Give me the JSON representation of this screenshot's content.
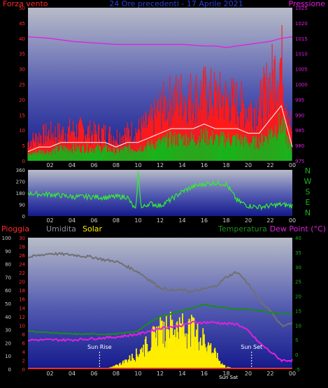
{
  "colors": {
    "background": "#000000",
    "plot_top": "#b8bcc8",
    "plot_bottom": "#141a8c",
    "tick_text": "#d0d0d0",
    "title": "#2b3fd6",
    "wind_gust": "#ff1a1a",
    "wind_avg": "#1bb21b",
    "pressure": "#e020e0",
    "direction": "#33ee33",
    "rain": "#ff2a2a",
    "humidity": "#707070",
    "solar": "#ffee00",
    "temperature": "#1a8c1a",
    "dew_point": "#e020e0",
    "temp_axis": "#1bb21b",
    "nswe_letters": "#1bb21b"
  },
  "top_panel": {
    "title": "24 Ore precedenti - 17 Aprile 2021",
    "left_label": "Forza vento",
    "right_label": "Pressione"
  },
  "middle_panel": {
    "compass_letters": [
      "N",
      "W",
      "S",
      "E",
      "N"
    ]
  },
  "bottom_panel": {
    "label_rain": "Pioggia",
    "label_humidity": "Umidita",
    "label_solar": "Solar",
    "label_temperature": "Temperatura",
    "label_dewpoint": "Dew Point (°C)",
    "sun_rise": "Sun Rise",
    "sun_set": "Sun Set",
    "sun_sat": "Sun Sat"
  },
  "chart_data": [
    {
      "type": "line",
      "panel": "wind_pressure",
      "x_ticks": [
        "02",
        "04",
        "06",
        "08",
        "10",
        "12",
        "14",
        "16",
        "18",
        "20",
        "22",
        "00"
      ],
      "y_left_ticks": [
        "0",
        "5",
        "10",
        "15",
        "20",
        "25",
        "30",
        "35",
        "40",
        "45",
        "50"
      ],
      "ylim_left": [
        0,
        50
      ],
      "y_right_ticks": [
        "975",
        "980",
        "985",
        "990",
        "995",
        "1000",
        "1005",
        "1010",
        "1015",
        "1020",
        "1025"
      ],
      "ylim_right": [
        975,
        1025
      ],
      "series": [
        {
          "axis": "left",
          "color_key": "wind_gust",
          "hours": [
            0,
            1,
            2,
            3,
            4,
            5,
            6,
            7,
            8,
            9,
            10,
            11,
            12,
            13,
            14,
            15,
            16,
            17,
            18,
            19,
            20,
            21,
            22,
            23,
            24
          ],
          "values": [
            6,
            8,
            9,
            9,
            10,
            10,
            9,
            9,
            8,
            9,
            10,
            12,
            17,
            20,
            21,
            21,
            22,
            21,
            20,
            19,
            17,
            18,
            26,
            33,
            8
          ]
        },
        {
          "axis": "left",
          "color_key": "wind_avg",
          "hours": [
            0,
            1,
            2,
            3,
            4,
            5,
            6,
            7,
            8,
            9,
            10,
            11,
            12,
            13,
            14,
            15,
            16,
            17,
            18,
            19,
            20,
            21,
            22,
            23,
            24
          ],
          "values": [
            2,
            3,
            3,
            4,
            4,
            4,
            4,
            4,
            3,
            4,
            4,
            5,
            6,
            7,
            7,
            7,
            8,
            7,
            7,
            7,
            6,
            6,
            9,
            12,
            3
          ]
        },
        {
          "axis": "right",
          "color_key": "pressure",
          "hours": [
            0,
            2,
            4,
            6,
            8,
            10,
            12,
            14,
            16,
            17,
            18,
            20,
            22,
            23,
            24
          ],
          "values": [
            1015.5,
            1015,
            1014,
            1013.5,
            1013,
            1013,
            1013,
            1013,
            1012.5,
            1012.5,
            1012,
            1013,
            1014,
            1015,
            1015.5
          ]
        }
      ]
    },
    {
      "type": "line",
      "panel": "wind_direction",
      "x_ticks": [
        "02",
        "04",
        "06",
        "08",
        "10",
        "12",
        "14",
        "16",
        "18",
        "20",
        "22",
        "00"
      ],
      "y_ticks": [
        "0",
        "90",
        "180",
        "270",
        "360"
      ],
      "ylim": [
        0,
        360
      ],
      "series": [
        {
          "color_key": "direction",
          "hours": [
            0,
            1,
            2,
            3,
            4,
            5,
            6,
            7,
            8,
            9,
            9.8,
            10,
            10.3,
            11,
            12,
            13,
            14,
            15,
            16,
            17,
            18,
            19,
            20,
            21,
            22,
            23,
            24
          ],
          "values": [
            180,
            170,
            170,
            160,
            150,
            150,
            150,
            145,
            150,
            150,
            40,
            340,
            60,
            100,
            80,
            130,
            190,
            230,
            250,
            260,
            250,
            120,
            80,
            70,
            80,
            90,
            80
          ]
        }
      ]
    },
    {
      "type": "line",
      "panel": "rain_humidity_solar_temperature",
      "x_ticks": [
        "02",
        "04",
        "06",
        "08",
        "10",
        "12",
        "14",
        "16",
        "18",
        "20",
        "22",
        "00"
      ],
      "y_left_ticks": [
        "0",
        "10",
        "20",
        "30",
        "40",
        "50",
        "60",
        "70",
        "80",
        "90",
        "100"
      ],
      "ylim_left": [
        0,
        100
      ],
      "y_rain_ticks": [
        "0",
        "2",
        "4",
        "6",
        "8",
        "10",
        "12",
        "14",
        "16",
        "18",
        "20",
        "22",
        "24",
        "26",
        "28",
        "30"
      ],
      "ylim_rain": [
        0,
        30
      ],
      "y_right_ticks": [
        "-5",
        "0",
        "5",
        "10",
        "15",
        "20",
        "25",
        "30",
        "35",
        "40"
      ],
      "ylim_right": [
        -5,
        40
      ],
      "series": [
        {
          "axis": "left",
          "color_key": "humidity",
          "hours": [
            0,
            2,
            4,
            6,
            7,
            8,
            9,
            10,
            11,
            12,
            13,
            14,
            15,
            16,
            17,
            18,
            19,
            20,
            21,
            22,
            23,
            24
          ],
          "values": [
            85,
            88,
            87,
            85,
            83,
            82,
            78,
            74,
            68,
            62,
            60,
            60,
            59,
            61,
            63,
            70,
            74,
            65,
            52,
            45,
            33,
            35
          ]
        },
        {
          "axis": "left",
          "color_key": "solar",
          "hours": [
            0,
            7,
            8,
            9,
            10,
            11,
            12,
            13,
            14,
            15,
            16,
            17,
            17.5,
            18,
            19,
            24
          ],
          "values": [
            0,
            0,
            3,
            8,
            15,
            25,
            35,
            40,
            38,
            36,
            28,
            14,
            6,
            2,
            0,
            0
          ]
        },
        {
          "axis": "right",
          "color_key": "temperature",
          "hours": [
            0,
            2,
            4,
            6,
            8,
            10,
            11,
            12,
            13,
            14,
            15,
            16,
            17,
            18,
            19,
            20,
            21,
            22,
            23,
            24
          ],
          "values": [
            8,
            7.5,
            7,
            7,
            7,
            8,
            11,
            13,
            14,
            15,
            16,
            17,
            16.5,
            16,
            15.5,
            15.5,
            15,
            14.5,
            14,
            14
          ]
        },
        {
          "axis": "right",
          "color_key": "dew_point",
          "hours": [
            0,
            2,
            4,
            6,
            8,
            10,
            12,
            14,
            15,
            16,
            17,
            18,
            19,
            20,
            21,
            22,
            23,
            24
          ],
          "values": [
            5,
            5,
            5,
            5.5,
            6,
            7,
            9,
            10,
            11,
            11,
            11,
            10.5,
            10.5,
            8,
            4,
            1,
            -2,
            -2
          ]
        },
        {
          "axis": "rain",
          "color_key": "rain",
          "hours": [
            0,
            24
          ],
          "values": [
            0,
            0
          ]
        }
      ],
      "sun_rise_hour": 6.5,
      "sun_set_hour": 20.3
    }
  ]
}
